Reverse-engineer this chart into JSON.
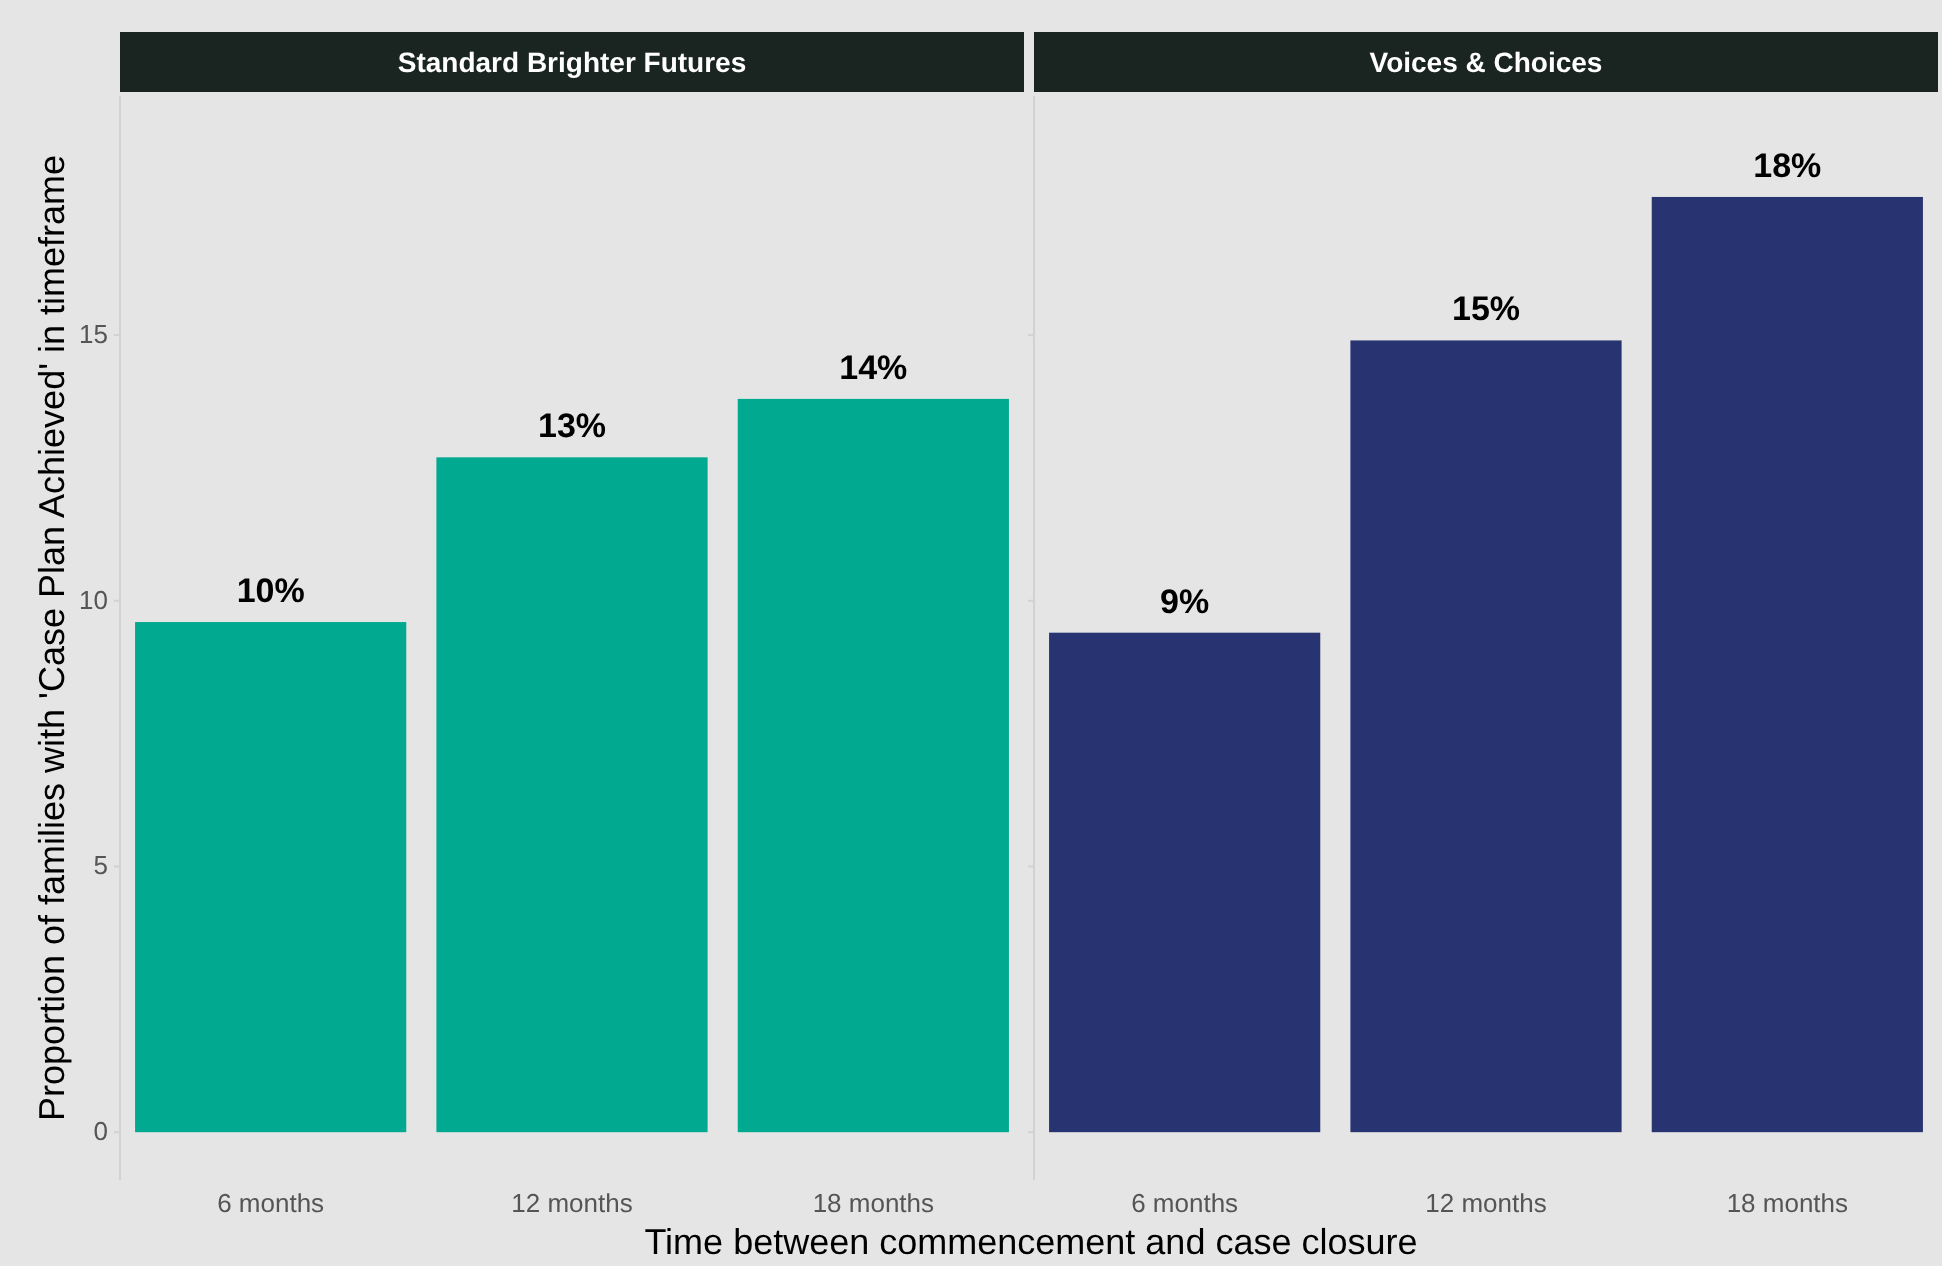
{
  "chart_data": [
    {
      "type": "bar",
      "title": "Standard Brighter Futures",
      "ylabel": "Proportion of families with 'Case Plan Achieved' in timeframe",
      "xlabel": "Time between commencement and case closure",
      "categories": [
        "6 months",
        "12 months",
        "18 months"
      ],
      "values": [
        9.6,
        12.7,
        13.8
      ],
      "color": "#00a98f",
      "value_labels": [
        "10%",
        "13%",
        "14%"
      ],
      "ylim": [
        -0.9,
        19.5
      ],
      "yticks": [
        0,
        5,
        10,
        15
      ],
      "grid": false
    },
    {
      "type": "bar",
      "title": "Voices & Choices",
      "categories": [
        "6 months",
        "12 months",
        "18 months"
      ],
      "values": [
        9.4,
        14.9,
        17.6
      ],
      "color": "#283372",
      "value_labels": [
        "9%",
        "15%",
        "18%"
      ],
      "ylim": [
        -0.9,
        19.5
      ],
      "yticks": [
        0,
        5,
        10,
        15
      ],
      "grid": false,
      "tick_labels": "x"
    }
  ]
}
